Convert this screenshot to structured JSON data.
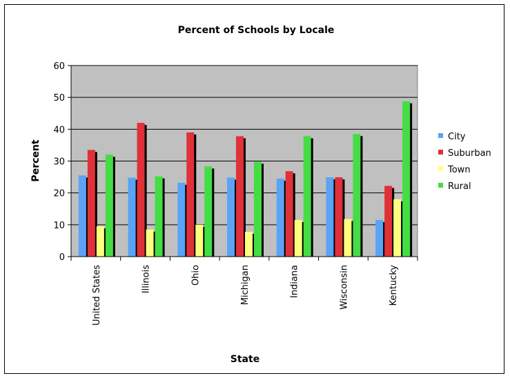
{
  "chart_data": {
    "type": "bar",
    "title": "Percent of Schools by Locale",
    "xlabel": "State",
    "ylabel": "Percent",
    "ylim": [
      0,
      60
    ],
    "yticks": [
      0,
      10,
      20,
      30,
      40,
      50,
      60
    ],
    "grid": true,
    "legend_position": "right",
    "categories": [
      "United States",
      "Illinois",
      "Ohio",
      "Michigan",
      "Indiana",
      "Wisconsin",
      "Kentucky"
    ],
    "series": [
      {
        "name": "City",
        "color": "#5ba3f5",
        "values": [
          25.5,
          24.8,
          23.2,
          24.8,
          24.5,
          24.9,
          11.5
        ]
      },
      {
        "name": "Suburban",
        "color": "#e03038",
        "values": [
          33.5,
          42,
          39,
          37.8,
          26.8,
          24.9,
          22.2
        ]
      },
      {
        "name": "Town",
        "color": "#ffff80",
        "values": [
          9.5,
          8.5,
          10,
          7.8,
          11.5,
          11.8,
          18
        ]
      },
      {
        "name": "Rural",
        "color": "#44dd44",
        "values": [
          32,
          25.2,
          28.3,
          29.8,
          37.8,
          38.5,
          48.8
        ]
      }
    ],
    "plot_background": "#c0c0c0"
  }
}
